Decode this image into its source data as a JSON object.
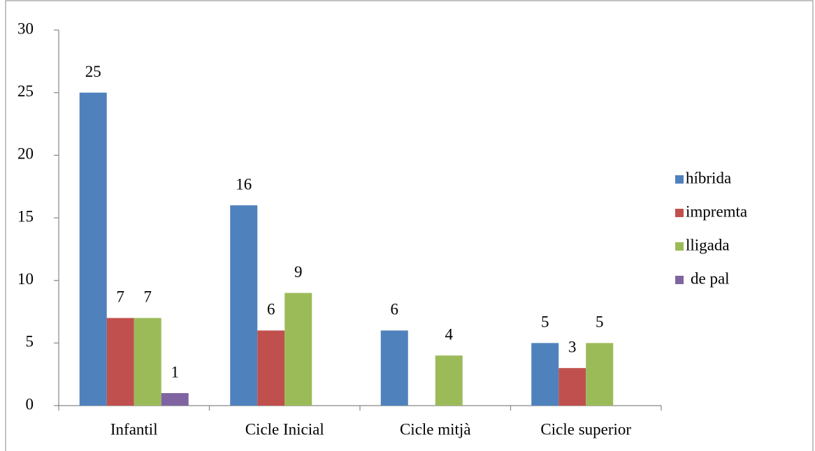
{
  "chart_data": {
    "type": "bar",
    "categories": [
      "Infantil",
      "Cicle Inicial",
      "Cicle mitjà",
      "Cicle superior"
    ],
    "series": [
      {
        "name": "híbrida",
        "color": "#4f81bd",
        "values": [
          25,
          16,
          6,
          5
        ]
      },
      {
        "name": "impremta",
        "color": "#c0504d",
        "values": [
          7,
          6,
          null,
          3
        ]
      },
      {
        "name": "lligada",
        "color": "#9bbb59",
        "values": [
          7,
          9,
          4,
          5
        ]
      },
      {
        "name": "de pal",
        "color": "#8064a2",
        "values": [
          1,
          null,
          null,
          null
        ]
      }
    ],
    "ylim": [
      0,
      30
    ],
    "yticks": [
      0,
      5,
      10,
      15,
      20,
      25,
      30
    ],
    "grid": false,
    "legend": "right"
  }
}
